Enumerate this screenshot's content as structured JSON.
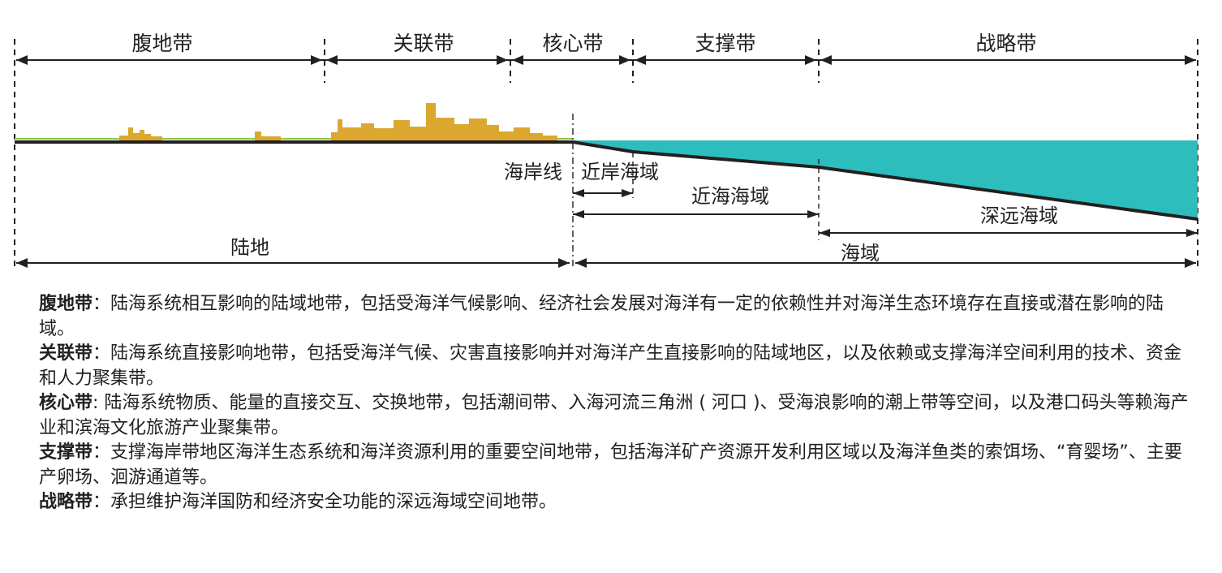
{
  "zones": [
    {
      "name": "腹地带"
    },
    {
      "name": "关联带"
    },
    {
      "name": "核心带"
    },
    {
      "name": "支撑带"
    },
    {
      "name": "战略带"
    }
  ],
  "labels": {
    "coastline": "海岸线",
    "nearshore": "近岸海域",
    "offshore": "近海海域",
    "deep_sea": "深远海域",
    "land": "陆地",
    "sea": "海域"
  },
  "colors": {
    "buildings": "#dba72e",
    "sea": "#2ebdbd",
    "ink": "#231f20",
    "grass": "#8dc63f"
  },
  "definitions": [
    {
      "term": "腹地带",
      "sep": "：",
      "text": "陆海系统相互影响的陆域地带，包括受海洋气候影响、经济社会发展对海洋有一定的依赖性并对海洋生态环境存在直接或潜在影响的陆域。"
    },
    {
      "term": "关联带",
      "sep": "：",
      "text": "陆海系统直接影响地带，包括受海洋气候、灾害直接影响并对海洋产生直接影响的陆域地区，以及依赖或支撑海洋空间利用的技术、资金和人力聚集带。"
    },
    {
      "term": "核心带",
      "sep": ": ",
      "text": "陆海系统物质、能量的直接交互、交换地带，包括潮间带、入海河流三角洲 ( 河口 )、受海浪影响的潮上带等空间，以及港口码头等赖海产业和滨海文化旅游产业聚集带。"
    },
    {
      "term": "支撑带",
      "sep": "：",
      "text": "支撑海岸带地区海洋生态系统和海洋资源利用的重要空间地带，包括海洋矿产资源开发利用区域以及海洋鱼类的索饵场、“育婴场”、主要产卵场、洄游通道等。"
    },
    {
      "term": "战略带",
      "sep": "：",
      "text": "承担维护海洋国防和经济安全功能的深远海域空间地带。"
    }
  ]
}
